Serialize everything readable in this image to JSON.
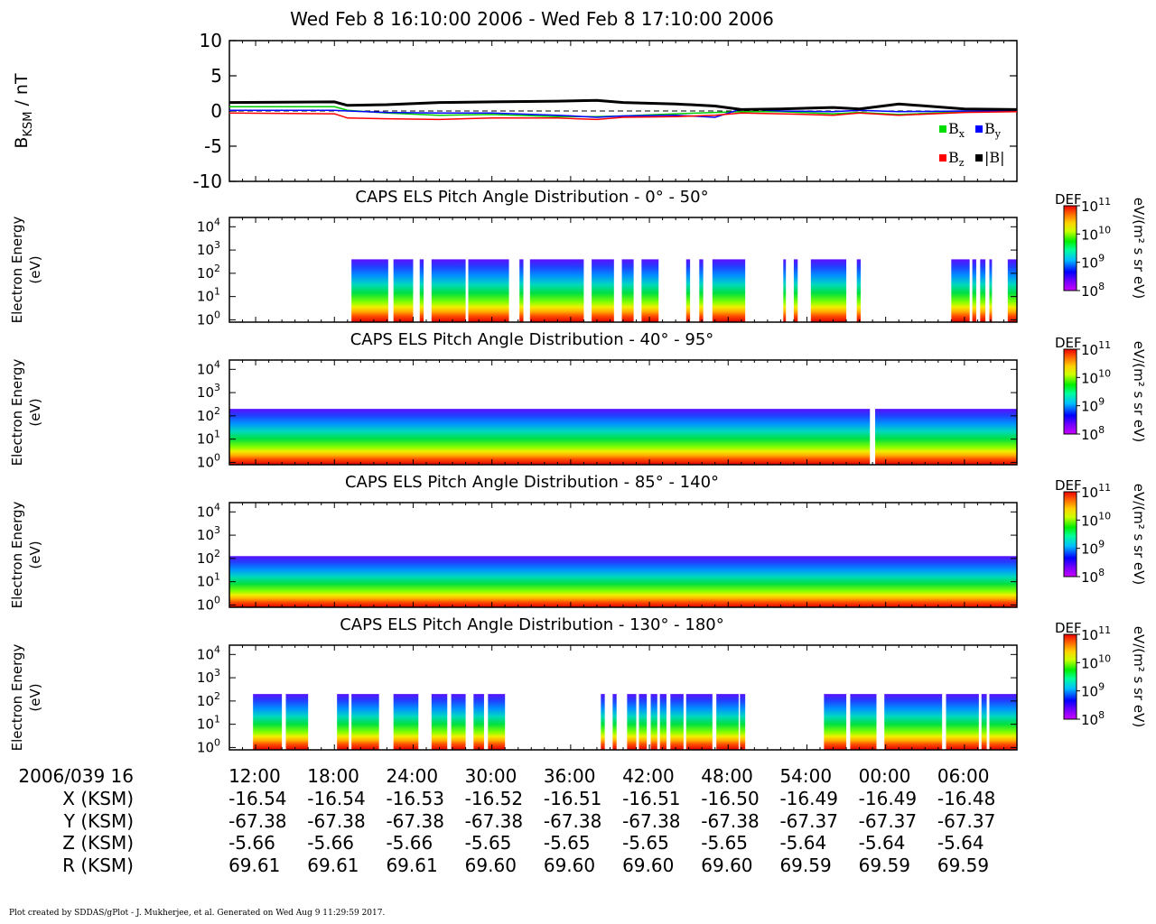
{
  "chart_data": [
    {
      "type": "line",
      "title": "Wed Feb 8 16:10:00 2006 - Wed Feb 8 17:10:00 2006",
      "ylabel": "B",
      "ylabel_sub": "KSM",
      "ylabel_unit": " / nT",
      "ylim": [
        -10,
        10
      ],
      "yticks": [
        "10",
        "5",
        "0",
        "-5",
        "-10"
      ],
      "xlim": [
        0,
        60
      ],
      "x_unit": "minutes after 16:10",
      "grid": false,
      "legend_position": "bottom-right",
      "legend": [
        {
          "name": "B",
          "sub": "x",
          "color": "#00dd00"
        },
        {
          "name": "B",
          "sub": "y",
          "color": "#0000ff"
        },
        {
          "name": "B",
          "sub": "z",
          "color": "#ff0000"
        },
        {
          "name": "|B|",
          "sub": "",
          "color": "#000000"
        }
      ],
      "series": [
        {
          "name": "Bx",
          "color": "#00cc00",
          "x": [
            0,
            8,
            9,
            12,
            16,
            20,
            25,
            28,
            30,
            34,
            37,
            39,
            42,
            46,
            48,
            51,
            56,
            60
          ],
          "y": [
            0.6,
            0.6,
            0.1,
            -0.3,
            -0.6,
            -0.5,
            -0.8,
            -0.8,
            -0.7,
            -0.4,
            -0.2,
            -0.1,
            -0.1,
            -0.4,
            -0.2,
            -0.5,
            -0.1,
            0.0
          ]
        },
        {
          "name": "By",
          "color": "#0000ff",
          "x": [
            0,
            8,
            9,
            12,
            16,
            20,
            25,
            28,
            30,
            34,
            37,
            39,
            42,
            46,
            48,
            51,
            56,
            60
          ],
          "y": [
            0.1,
            0.1,
            0.0,
            -0.2,
            -0.3,
            -0.3,
            -0.6,
            -0.9,
            -0.7,
            -0.6,
            -0.9,
            0.3,
            0.0,
            -0.1,
            0.1,
            -0.1,
            0.0,
            0.0
          ]
        },
        {
          "name": "Bz",
          "color": "#ff0000",
          "x": [
            0,
            8,
            9,
            12,
            16,
            20,
            25,
            28,
            30,
            34,
            37,
            39,
            42,
            46,
            48,
            51,
            56,
            60
          ],
          "y": [
            -0.3,
            -0.4,
            -1.0,
            -1.1,
            -1.2,
            -1.0,
            -1.0,
            -1.2,
            -0.9,
            -0.8,
            -0.6,
            -0.3,
            -0.4,
            -0.6,
            -0.3,
            -0.6,
            -0.2,
            -0.1
          ]
        },
        {
          "name": "|B|",
          "color": "#000000",
          "x": [
            0,
            8,
            9,
            12,
            16,
            20,
            25,
            28,
            30,
            34,
            37,
            39,
            42,
            46,
            48,
            51,
            56,
            60
          ],
          "y": [
            1.2,
            1.3,
            0.8,
            0.9,
            1.2,
            1.3,
            1.4,
            1.5,
            1.2,
            1.0,
            0.7,
            0.2,
            0.3,
            0.5,
            0.3,
            1.0,
            0.3,
            0.2
          ]
        }
      ]
    },
    {
      "type": "heatmap",
      "title": "CAPS ELS Pitch Angle Distribution - 0° - 50°",
      "ylabel": "Electron Energy",
      "ylabel_unit": "(eV)",
      "ylim_log10": [
        -0.1,
        4.4
      ],
      "zlabel": "DEF",
      "zunit": "eV/(m² s sr eV)",
      "zlim_log10": [
        8,
        11
      ],
      "coverage_minutes": [
        [
          9.3,
          12.1
        ],
        [
          12.5,
          14.0
        ],
        [
          14.5,
          14.8
        ],
        [
          15.4,
          18.0
        ],
        [
          18.2,
          21.3
        ],
        [
          22.1,
          22.4
        ],
        [
          22.9,
          27.0
        ],
        [
          27.6,
          29.3
        ],
        [
          29.9,
          30.8
        ],
        [
          31.4,
          32.7
        ],
        [
          34.8,
          35.1
        ],
        [
          35.8,
          36.1
        ],
        [
          36.8,
          39.3
        ],
        [
          42.2,
          42.4
        ],
        [
          43.0,
          43.3
        ],
        [
          44.3,
          47.0
        ],
        [
          47.8,
          48.1
        ],
        [
          55.0,
          56.4
        ],
        [
          56.6,
          56.9
        ],
        [
          57.2,
          57.6
        ],
        [
          57.9,
          58.1
        ],
        [
          59.3,
          60.0
        ]
      ],
      "upper_energy_log10": 2.6
    },
    {
      "type": "heatmap",
      "title": "CAPS ELS Pitch Angle Distribution - 40° - 95°",
      "ylabel": "Electron Energy",
      "ylabel_unit": "(eV)",
      "ylim_log10": [
        -0.1,
        4.4
      ],
      "zlabel": "DEF",
      "zunit": "eV/(m² s sr eV)",
      "zlim_log10": [
        8,
        11
      ],
      "coverage_minutes": [
        [
          0.0,
          48.8
        ],
        [
          49.2,
          60.0
        ]
      ],
      "upper_energy_log10": 2.3
    },
    {
      "type": "heatmap",
      "title": "CAPS ELS Pitch Angle Distribution - 85° - 140°",
      "ylabel": "Electron Energy",
      "ylabel_unit": "(eV)",
      "ylim_log10": [
        -0.1,
        4.4
      ],
      "zlabel": "DEF",
      "zunit": "eV/(m² s sr eV)",
      "zlim_log10": [
        8,
        11
      ],
      "coverage_minutes": [
        [
          0.0,
          60.0
        ]
      ],
      "upper_energy_log10": 2.1
    },
    {
      "type": "heatmap",
      "title": "CAPS ELS Pitch Angle Distribution - 130° - 180°",
      "ylabel": "Electron Energy",
      "ylabel_unit": "(eV)",
      "ylim_log10": [
        -0.1,
        4.4
      ],
      "zlabel": "DEF",
      "zunit": "eV/(m² s sr eV)",
      "zlim_log10": [
        8,
        11
      ],
      "coverage_minutes": [
        [
          1.8,
          4.0
        ],
        [
          4.3,
          6.0
        ],
        [
          8.2,
          9.1
        ],
        [
          9.3,
          11.4
        ],
        [
          12.5,
          14.4
        ],
        [
          15.4,
          16.6
        ],
        [
          16.9,
          18.0
        ],
        [
          18.6,
          19.4
        ],
        [
          19.7,
          21.0
        ],
        [
          28.3,
          28.6
        ],
        [
          29.2,
          29.5
        ],
        [
          30.3,
          31.0
        ],
        [
          31.2,
          31.8
        ],
        [
          32.1,
          32.6
        ],
        [
          32.8,
          33.3
        ],
        [
          33.6,
          34.6
        ],
        [
          34.8,
          36.8
        ],
        [
          37.1,
          38.8
        ],
        [
          38.9,
          39.3
        ],
        [
          45.3,
          47.0
        ],
        [
          47.3,
          49.3
        ],
        [
          49.9,
          54.3
        ],
        [
          54.6,
          57.1
        ],
        [
          57.3,
          57.7
        ],
        [
          57.9,
          60.0
        ]
      ],
      "upper_energy_log10": 2.3
    }
  ],
  "axis": {
    "row_header": "2006/039 16",
    "tick_labels": [
      "12:00",
      "18:00",
      "24:00",
      "30:00",
      "36:00",
      "42:00",
      "48:00",
      "54:00",
      "00:00",
      "06:00"
    ],
    "tick_minutes": [
      2,
      8,
      14,
      20,
      26,
      32,
      38,
      44,
      50,
      56
    ],
    "rows": [
      {
        "label": "X (KSM)",
        "values": [
          "-16.54",
          "-16.54",
          "-16.53",
          "-16.52",
          "-16.51",
          "-16.51",
          "-16.50",
          "-16.49",
          "-16.49",
          "-16.48"
        ]
      },
      {
        "label": "Y (KSM)",
        "values": [
          "-67.38",
          "-67.38",
          "-67.38",
          "-67.38",
          "-67.38",
          "-67.38",
          "-67.38",
          "-67.37",
          "-67.37",
          "-67.37"
        ]
      },
      {
        "label": "Z (KSM)",
        "values": [
          "-5.66",
          "-5.66",
          "-5.66",
          "-5.65",
          "-5.65",
          "-5.65",
          "-5.65",
          "-5.64",
          "-5.64",
          "-5.64"
        ]
      },
      {
        "label": "R (KSM)",
        "values": [
          "69.61",
          "69.61",
          "69.61",
          "69.60",
          "69.60",
          "69.60",
          "69.60",
          "69.59",
          "69.59",
          "69.59"
        ]
      }
    ]
  },
  "energy_tick_exponents": [
    "0",
    "1",
    "2",
    "3",
    "4"
  ],
  "colorbar_tick_exponents": [
    "8",
    "9",
    "10",
    "11"
  ],
  "footer": "Plot created by SDDAS/gPlot - J. Mukherjee, et al.  Generated on Wed Aug 9 11:29:59 2017."
}
